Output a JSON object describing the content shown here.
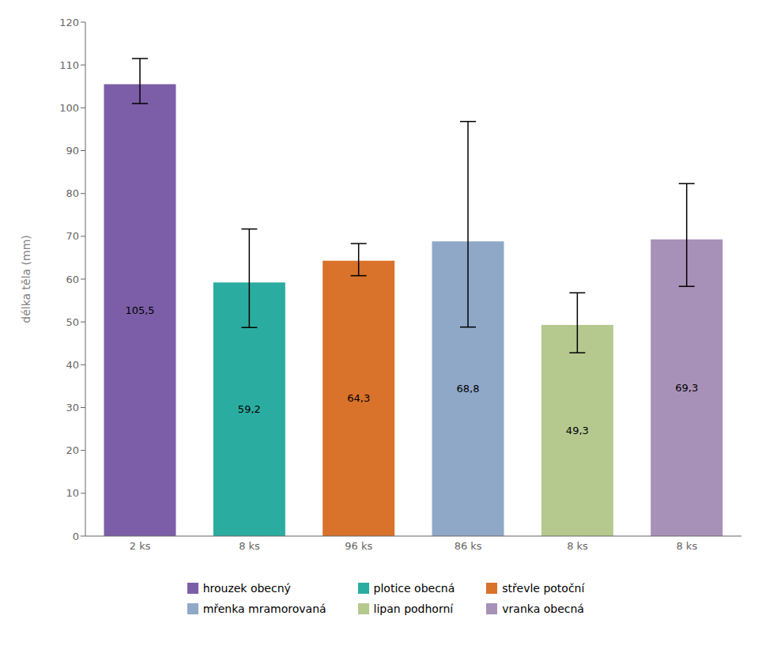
{
  "chart_data": {
    "type": "bar",
    "categories": [
      "2 ks",
      "8 ks",
      "96 ks",
      "86 ks",
      "8 ks",
      "8 ks"
    ],
    "values": [
      105.5,
      59.2,
      64.3,
      68.8,
      49.3,
      69.3
    ],
    "value_labels": [
      "105,5",
      "59,2",
      "64,3",
      "68,8",
      "49,3",
      "69,3"
    ],
    "data_labels": true,
    "errors_upper": [
      6.0,
      12.5,
      4.0,
      28.0,
      7.5,
      13.0
    ],
    "errors_lower": [
      4.5,
      10.5,
      3.5,
      20.0,
      6.5,
      11.0
    ],
    "colors": [
      "#7B5EA7",
      "#2AADA0",
      "#D9722A",
      "#8FA8C8",
      "#B5C98E",
      "#A891B8"
    ],
    "ylabel": "délka těla (mm)",
    "ylim": [
      0,
      120
    ],
    "yticks": [
      0,
      10,
      20,
      30,
      40,
      50,
      60,
      70,
      80,
      90,
      100,
      110,
      120
    ],
    "grid": false,
    "legend_labels": [
      "hrouzek obecný",
      "plotice obecná",
      "střevle potoční",
      "mřenka mramorovaná",
      "lipan podhorní",
      "vranka obecná"
    ]
  }
}
